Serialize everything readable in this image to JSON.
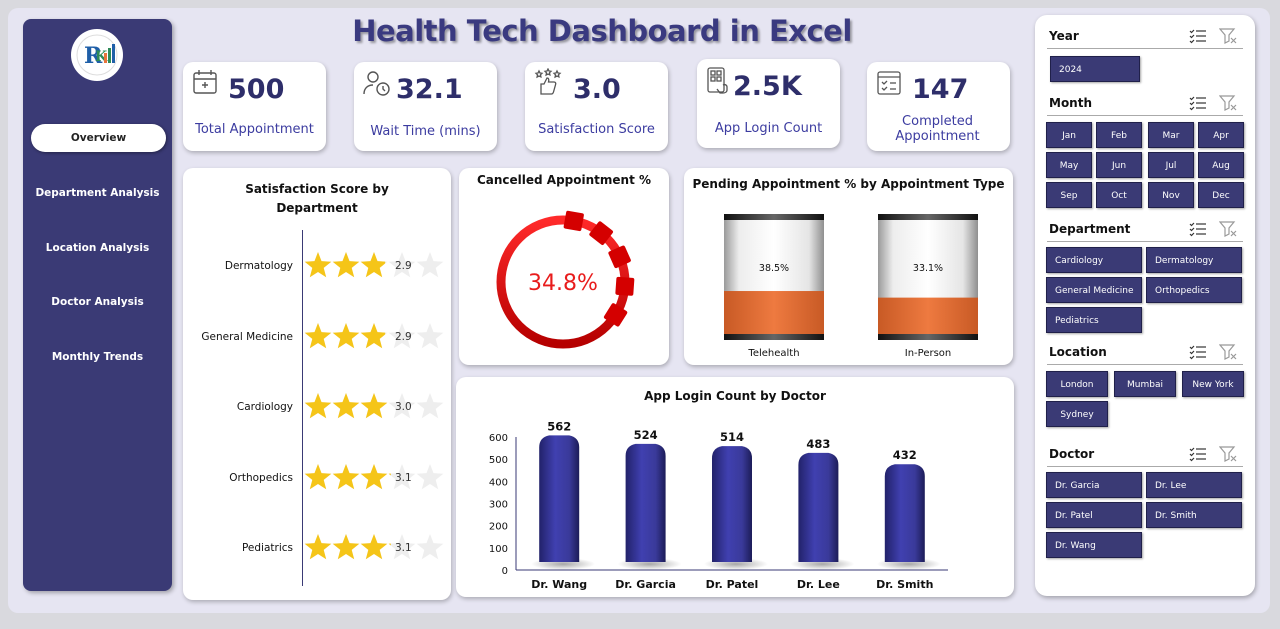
{
  "title": "Health Tech Dashboard in Excel",
  "sidebar": {
    "items": [
      {
        "label": "Overview",
        "active": true
      },
      {
        "label": "Department Analysis"
      },
      {
        "label": "Location Analysis"
      },
      {
        "label": "Doctor Analysis"
      },
      {
        "label": "Monthly Trends"
      }
    ]
  },
  "kpis": [
    {
      "value": "500",
      "label": "Total Appointment",
      "icon": "calendar-icon"
    },
    {
      "value": "32.1",
      "label": "Wait Time (mins)",
      "icon": "user-clock-icon"
    },
    {
      "value": "3.0",
      "label": "Satisfaction Score",
      "icon": "thumbs-up-stars-icon"
    },
    {
      "value": "2.5K",
      "label": "App Login Count",
      "icon": "phone-app-icon"
    },
    {
      "value": "147",
      "label": "Completed Appointment",
      "icon": "checklist-calendar-icon"
    }
  ],
  "satisfaction": {
    "title": "Satisfaction Score by Department",
    "rows": [
      {
        "dept": "Dermatology",
        "score": "2.9",
        "value": 2.9
      },
      {
        "dept": "General Medicine",
        "score": "2.9",
        "value": 2.9
      },
      {
        "dept": "Cardiology",
        "score": "3.0",
        "value": 3.0
      },
      {
        "dept": "Orthopedics",
        "score": "3.1",
        "value": 3.1
      },
      {
        "dept": "Pediatrics",
        "score": "3.1",
        "value": 3.1
      }
    ]
  },
  "cancelled": {
    "title": "Cancelled Appointment %",
    "value_label": "34.8%",
    "value": 34.8
  },
  "pending": {
    "title": "Pending Appointment % by Appointment Type",
    "bars": [
      {
        "name": "Telehealth",
        "label": "38.5%",
        "value": 38.5
      },
      {
        "name": "In-Person",
        "label": "33.1%",
        "value": 33.1
      }
    ]
  },
  "chart_data": {
    "type": "bar",
    "title": "App Login Count by Doctor",
    "categories": [
      "Dr. Wang",
      "Dr. Garcia",
      "Dr. Patel",
      "Dr. Lee",
      "Dr. Smith"
    ],
    "values": [
      562,
      524,
      514,
      483,
      432
    ],
    "data_labels": [
      "562",
      "524",
      "514",
      "483",
      "432"
    ],
    "ylim": [
      0,
      600
    ],
    "yticks": [
      "0",
      "100",
      "200",
      "300",
      "400",
      "500",
      "600"
    ],
    "grid": false,
    "color": "#3a3a9a"
  },
  "slicers": {
    "year": {
      "title": "Year",
      "items": [
        "2024"
      ]
    },
    "month": {
      "title": "Month",
      "items": [
        "Jan",
        "Feb",
        "Mar",
        "Apr",
        "May",
        "Jun",
        "Jul",
        "Aug",
        "Sep",
        "Oct",
        "Nov",
        "Dec"
      ]
    },
    "department": {
      "title": "Department",
      "items": [
        "Cardiology",
        "Dermatology",
        "General Medicine",
        "Orthopedics",
        "Pediatrics"
      ]
    },
    "location": {
      "title": "Location",
      "items": [
        "London",
        "Mumbai",
        "New York",
        "Sydney"
      ]
    },
    "doctor": {
      "title": "Doctor",
      "items": [
        "Dr. Garcia",
        "Dr. Lee",
        "Dr. Patel",
        "Dr. Smith",
        "Dr. Wang"
      ]
    }
  },
  "colors": {
    "navy": "#3a3a75",
    "accent_red": "#e81c1c",
    "orange": "#e8743b",
    "star": "#f5c518"
  }
}
